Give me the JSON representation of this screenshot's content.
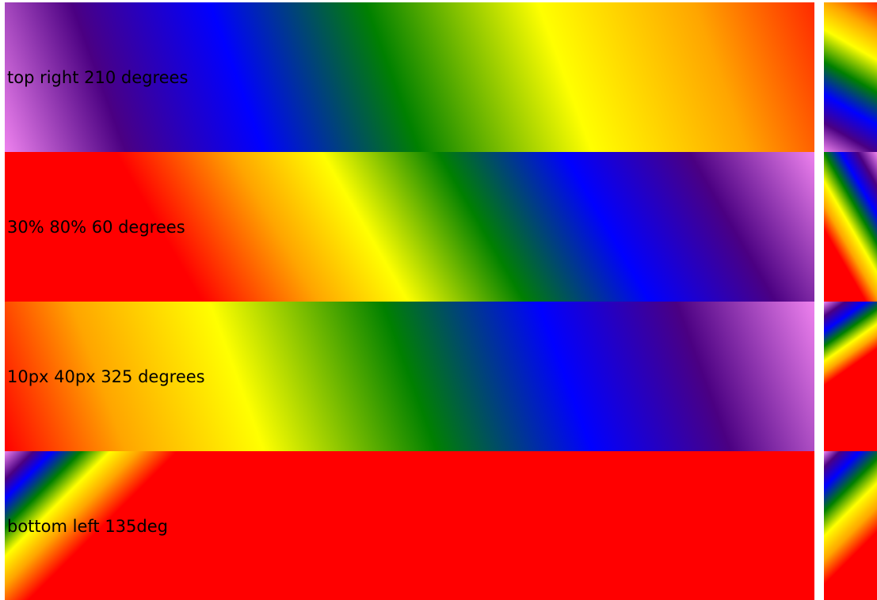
{
  "bands": [
    {
      "label": "top right 210 degrees"
    },
    {
      "label": "30% 80% 60 degrees"
    },
    {
      "label": "10px 40px 325 degrees"
    },
    {
      "label": "bottom left 135deg"
    }
  ],
  "colors": {
    "gradient_stops": [
      "#ee82ee",
      "#4b0082",
      "#0000ff",
      "#008000",
      "#ffff00",
      "#ffa500",
      "#ff0000"
    ],
    "background": "#ffffff",
    "text": "#000000"
  }
}
